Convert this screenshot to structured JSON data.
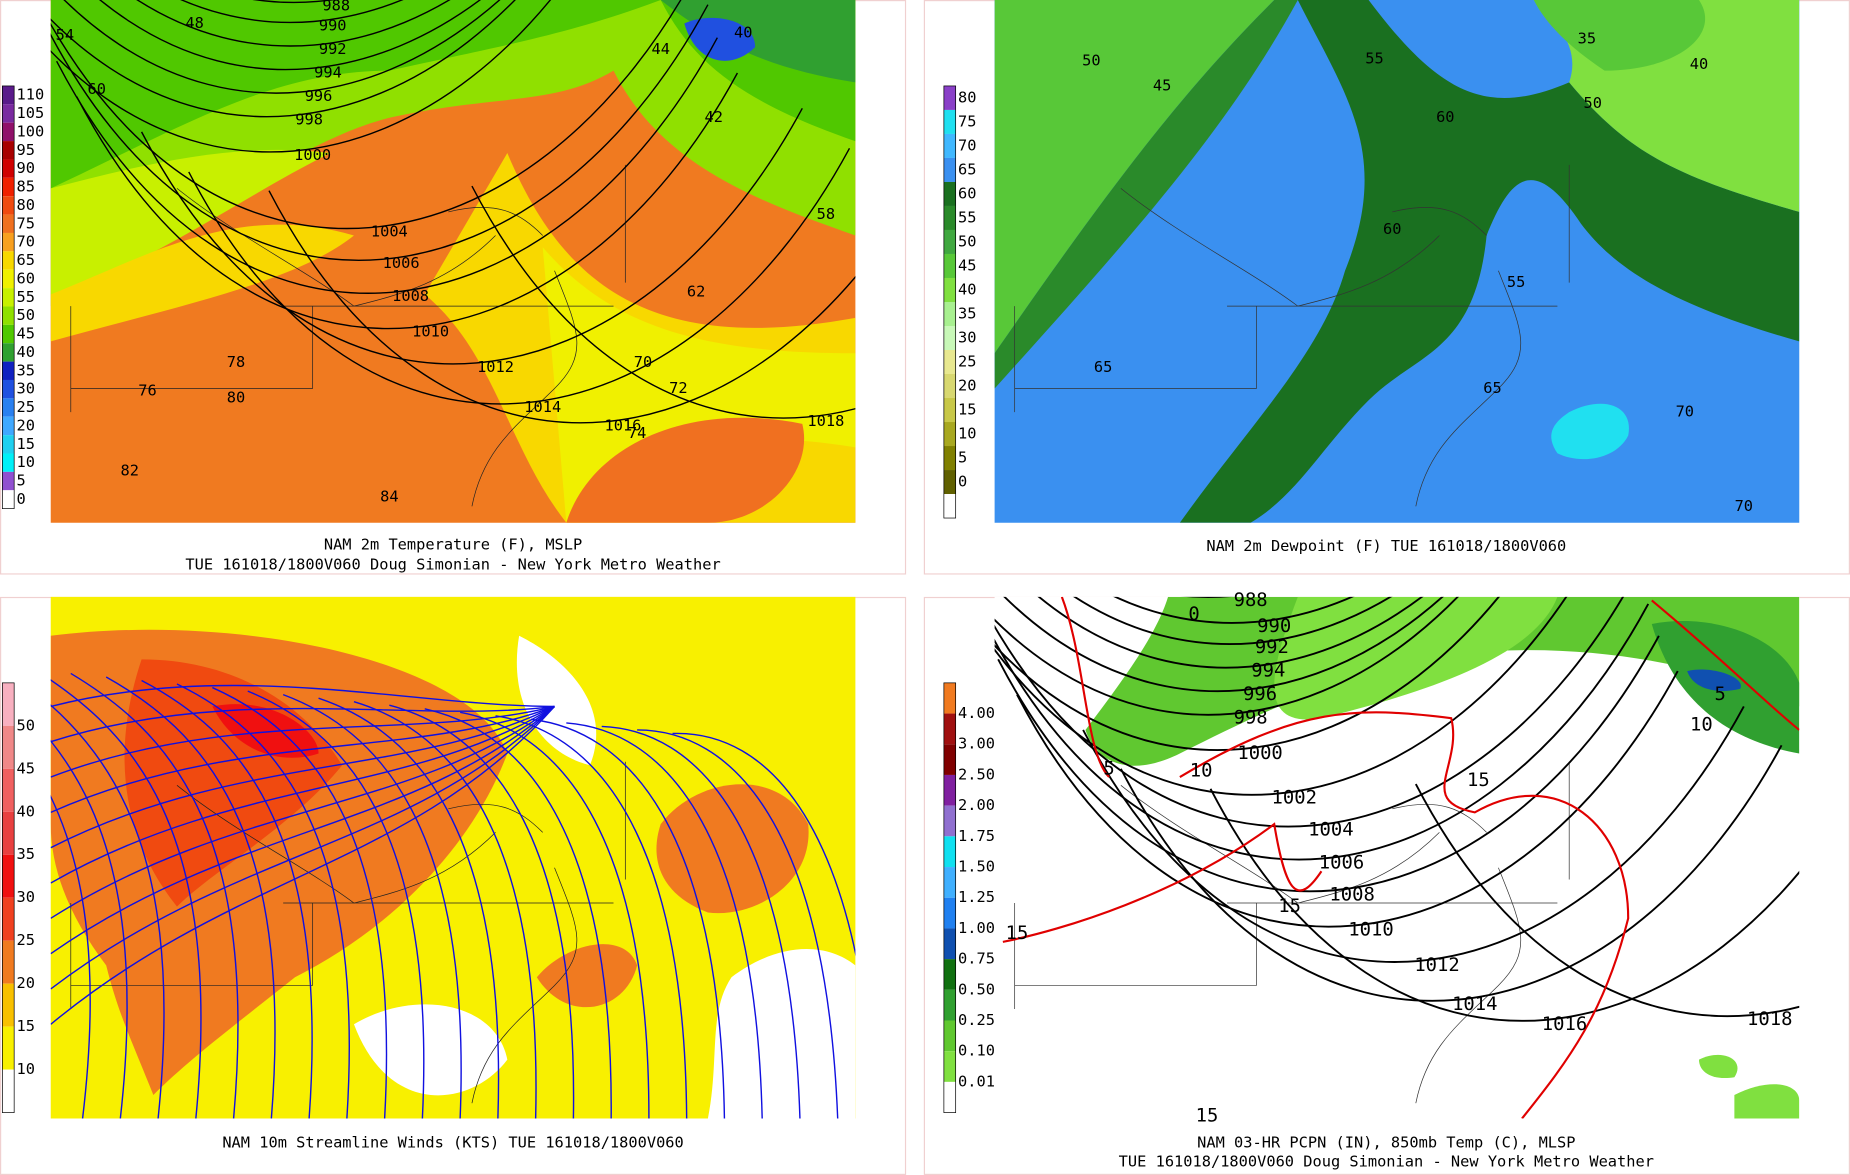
{
  "panels": [
    {
      "caption_lines": [
        "NAM 2m Temperature (F), MSLP",
        "TUE 161018/1800V060 Doug Simonian - New York Metro Weather"
      ],
      "colorbar": {
        "labels": [
          "110",
          "105",
          "100",
          "95",
          "90",
          "85",
          "80",
          "75",
          "70",
          "65",
          "60",
          "55",
          "50",
          "45",
          "40",
          "35",
          "30",
          "25",
          "20",
          "15",
          "10",
          "5",
          "0"
        ],
        "colors": [
          "#5a1a8a",
          "#7a2aa0",
          "#90106a",
          "#a80000",
          "#d00000",
          "#f02000",
          "#f04a10",
          "#f07020",
          "#f8a020",
          "#f8d800",
          "#f0f000",
          "#c8f000",
          "#90e000",
          "#50c800",
          "#30a030",
          "#1020c0",
          "#2050e0",
          "#2a80f0",
          "#40a8ff",
          "#20d0f0",
          "#00f0f8",
          "#9050d0",
          "#ffffff"
        ]
      },
      "map_labels": [
        "988",
        "990",
        "992",
        "994",
        "996",
        "998",
        "1000",
        "1004",
        "1006",
        "1008",
        "1010",
        "1012",
        "1014",
        "1016",
        "1018",
        "48",
        "54",
        "60",
        "76",
        "80",
        "82",
        "84",
        "78",
        "74",
        "70",
        "72",
        "40",
        "42",
        "44",
        "62",
        "58"
      ]
    },
    {
      "caption_lines": [
        "NAM 2m Dewpoint (F)  TUE 161018/1800V060"
      ],
      "colorbar": {
        "labels": [
          "80",
          "75",
          "70",
          "65",
          "60",
          "55",
          "50",
          "45",
          "40",
          "35",
          "30",
          "25",
          "20",
          "15",
          "10",
          "5",
          "0"
        ],
        "colors": [
          "#8a40c8",
          "#20e0f0",
          "#40b8ff",
          "#3a90f0",
          "#1a7020",
          "#2a8a2a",
          "#40a840",
          "#58c838",
          "#80e040",
          "#a8f090",
          "#c8f8b8",
          "#e8e890",
          "#d8d870",
          "#c8c848",
          "#a8a820",
          "#808000",
          "#606000"
        ]
      },
      "map_labels": [
        "50",
        "45",
        "55",
        "60",
        "65",
        "70",
        "35",
        "40",
        "50",
        "55",
        "60",
        "65",
        "70"
      ]
    },
    {
      "caption_lines": [
        "NAM 10m Streamline Winds (KTS)  TUE 161018/1800V060"
      ],
      "colorbar": {
        "labels": [
          "50",
          "45",
          "40",
          "35",
          "30",
          "25",
          "20",
          "15",
          "10"
        ],
        "colors": [
          "#f8b0c0",
          "#f08888",
          "#f06060",
          "#e84040",
          "#f01010",
          "#f04020",
          "#f07a20",
          "#f8c000",
          "#f8f000"
        ]
      },
      "map_labels": []
    },
    {
      "caption_lines": [
        "NAM 03-HR PCPN (IN), 850mb Temp (C), MLSP",
        "TUE 161018/1800V060 Doug Simonian - New York Metro Weather"
      ],
      "colorbar": {
        "labels": [
          "4.00",
          "3.00",
          "2.50",
          "2.00",
          "1.75",
          "1.50",
          "1.25",
          "1.00",
          "0.75",
          "0.50",
          "0.25",
          "0.10",
          "0.01"
        ],
        "colors": [
          "#f07a20",
          "#a01010",
          "#800000",
          "#8020a0",
          "#9070d0",
          "#10e0f0",
          "#40b0ff",
          "#2080f0",
          "#1050b0",
          "#107010",
          "#30a030",
          "#60c830",
          "#80e040"
        ]
      },
      "map_labels": [
        "988",
        "990",
        "992",
        "994",
        "996",
        "998",
        "1000",
        "1002",
        "1004",
        "1006",
        "1008",
        "1010",
        "1012",
        "1014",
        "1016",
        "1018",
        "5",
        "10",
        "15",
        "15",
        "15",
        "15",
        "5",
        "10",
        "0"
      ]
    }
  ]
}
